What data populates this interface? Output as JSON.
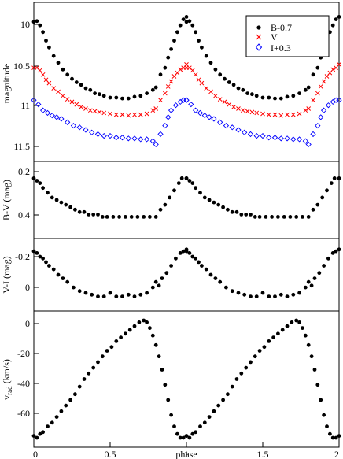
{
  "chart_data": [
    {
      "type": "scatter",
      "ylabel": "magnitude",
      "y_inverted": true,
      "xlim": [
        0,
        2
      ],
      "ylim": [
        9.85,
        11.72
      ],
      "yticks": [
        "10",
        "10.5",
        "11",
        "11.5"
      ],
      "ytick_values": [
        10,
        10.5,
        11,
        11.5
      ],
      "legend_position": "top-right",
      "series": [
        {
          "name": "B-0.7",
          "marker": "circle",
          "color": "#000000",
          "x": [
            0.0,
            0.02,
            0.04,
            0.06,
            0.08,
            0.1,
            0.13,
            0.16,
            0.19,
            0.22,
            0.25,
            0.28,
            0.31,
            0.34,
            0.37,
            0.4,
            0.43,
            0.46,
            0.5,
            0.54,
            0.58,
            0.62,
            0.66,
            0.7,
            0.74,
            0.78,
            0.8,
            0.83,
            0.86,
            0.88,
            0.9,
            0.92,
            0.94,
            0.96,
            0.98,
            1.0
          ],
          "y": [
            10.08,
            10.07,
            10.12,
            10.2,
            10.3,
            10.38,
            10.48,
            10.56,
            10.64,
            10.7,
            10.75,
            10.79,
            10.82,
            10.86,
            10.88,
            10.92,
            10.93,
            10.95,
            10.97,
            10.97,
            10.98,
            10.98,
            10.96,
            10.95,
            10.92,
            10.88,
            10.85,
            10.7,
            10.62,
            10.5,
            10.4,
            10.3,
            10.2,
            10.12,
            10.05,
            10.02
          ]
        },
        {
          "name": "V",
          "marker": "x",
          "color": "#ff0000",
          "x": [
            0.0,
            0.02,
            0.04,
            0.06,
            0.08,
            0.1,
            0.13,
            0.16,
            0.19,
            0.22,
            0.25,
            0.28,
            0.31,
            0.34,
            0.37,
            0.4,
            0.43,
            0.46,
            0.5,
            0.54,
            0.58,
            0.62,
            0.66,
            0.7,
            0.74,
            0.78,
            0.8,
            0.83,
            0.86,
            0.88,
            0.9,
            0.92,
            0.94,
            0.96,
            0.98,
            1.0
          ],
          "y": [
            10.62,
            10.62,
            10.65,
            10.7,
            10.76,
            10.8,
            10.86,
            10.9,
            10.95,
            10.99,
            11.02,
            11.05,
            11.08,
            11.1,
            11.12,
            11.13,
            11.14,
            11.15,
            11.16,
            11.17,
            11.17,
            11.18,
            11.17,
            11.17,
            11.16,
            11.12,
            11.1,
            11.0,
            10.92,
            10.84,
            10.78,
            10.72,
            10.68,
            10.64,
            10.62,
            10.58
          ]
        },
        {
          "name": "I+0.3",
          "marker": "diamond",
          "color": "#0000ff",
          "x": [
            0.0,
            0.03,
            0.06,
            0.09,
            0.12,
            0.15,
            0.18,
            0.22,
            0.26,
            0.3,
            0.34,
            0.38,
            0.42,
            0.46,
            0.5,
            0.54,
            0.58,
            0.62,
            0.66,
            0.7,
            0.74,
            0.78,
            0.8,
            0.83,
            0.86,
            0.88,
            0.9,
            0.93,
            0.96,
            0.98,
            1.0
          ],
          "y": [
            11.0,
            11.05,
            11.12,
            11.15,
            11.18,
            11.2,
            11.22,
            11.26,
            11.3,
            11.32,
            11.35,
            11.38,
            11.4,
            11.42,
            11.42,
            11.44,
            11.44,
            11.45,
            11.45,
            11.46,
            11.46,
            11.48,
            11.52,
            11.4,
            11.3,
            11.2,
            11.12,
            11.06,
            11.02,
            11.0,
            11.0
          ]
        }
      ]
    },
    {
      "type": "scatter",
      "ylabel": "B-V (mag)",
      "y_inverted": true,
      "xlim": [
        0,
        2
      ],
      "ylim": [
        0.18,
        0.5
      ],
      "yticks": [
        "0.2",
        "0.4"
      ],
      "ytick_values": [
        0.2,
        0.4
      ],
      "series": [
        {
          "name": "",
          "marker": "circle",
          "color": "#000000",
          "x": [
            0.0,
            0.02,
            0.04,
            0.06,
            0.09,
            0.12,
            0.15,
            0.18,
            0.21,
            0.24,
            0.27,
            0.3,
            0.33,
            0.36,
            0.39,
            0.42,
            0.45,
            0.48,
            0.52,
            0.56,
            0.6,
            0.64,
            0.68,
            0.72,
            0.76,
            0.8,
            0.83,
            0.86,
            0.89,
            0.92,
            0.95,
            0.97,
            1.0
          ],
          "y": [
            0.25,
            0.26,
            0.27,
            0.29,
            0.31,
            0.33,
            0.34,
            0.35,
            0.36,
            0.37,
            0.38,
            0.39,
            0.39,
            0.4,
            0.4,
            0.4,
            0.41,
            0.41,
            0.41,
            0.41,
            0.41,
            0.41,
            0.41,
            0.41,
            0.41,
            0.41,
            0.38,
            0.36,
            0.33,
            0.3,
            0.27,
            0.25,
            0.25
          ]
        }
      ]
    },
    {
      "type": "scatter",
      "ylabel": "V-I (mag)",
      "y_inverted": true,
      "xlim": [
        0,
        2
      ],
      "ylim": [
        -0.32,
        0.08
      ],
      "yticks": [
        "-0.2",
        "0"
      ],
      "ytick_values": [
        -0.2,
        0
      ],
      "series": [
        {
          "name": "",
          "marker": "circle",
          "color": "#000000",
          "x": [
            0.0,
            0.02,
            0.04,
            0.06,
            0.08,
            0.1,
            0.13,
            0.16,
            0.19,
            0.22,
            0.26,
            0.3,
            0.34,
            0.38,
            0.42,
            0.46,
            0.5,
            0.54,
            0.58,
            0.62,
            0.66,
            0.7,
            0.74,
            0.78,
            0.8,
            0.82,
            0.84,
            0.87,
            0.9,
            0.93,
            0.96,
            0.98,
            1.0
          ],
          "y": [
            -0.25,
            -0.24,
            -0.22,
            -0.21,
            -0.19,
            -0.17,
            -0.15,
            -0.12,
            -0.1,
            -0.08,
            -0.05,
            -0.03,
            -0.02,
            -0.01,
            0.0,
            0.0,
            -0.02,
            0.0,
            0.0,
            -0.01,
            0.0,
            -0.01,
            -0.02,
            -0.05,
            -0.08,
            -0.06,
            -0.1,
            -0.13,
            -0.17,
            -0.21,
            -0.24,
            -0.25,
            -0.26
          ]
        }
      ]
    },
    {
      "type": "scatter",
      "xlabel": "phase",
      "ylabel": "v_rad (km/s)",
      "xlim": [
        0,
        2
      ],
      "ylim": [
        -68,
        4
      ],
      "xticks": [
        "0",
        "0.5",
        "1",
        "1.5",
        "2"
      ],
      "xtick_values": [
        0,
        0.5,
        1,
        1.5,
        2
      ],
      "yticks": [
        "0",
        "-20",
        "-40",
        "-60"
      ],
      "ytick_values": [
        0,
        -20,
        -40,
        -60
      ],
      "series": [
        {
          "name": "",
          "marker": "circle",
          "color": "#000000",
          "x": [
            0.0,
            0.02,
            0.04,
            0.06,
            0.09,
            0.12,
            0.15,
            0.18,
            0.21,
            0.24,
            0.27,
            0.3,
            0.33,
            0.36,
            0.39,
            0.42,
            0.45,
            0.48,
            0.51,
            0.54,
            0.57,
            0.6,
            0.63,
            0.66,
            0.69,
            0.72,
            0.74,
            0.76,
            0.78,
            0.8,
            0.82,
            0.84,
            0.86,
            0.88,
            0.9,
            0.92,
            0.94,
            0.96,
            0.98,
            1.0
          ],
          "y": [
            -62,
            -63,
            -61,
            -60,
            -57,
            -55,
            -52,
            -49,
            -46,
            -43,
            -40,
            -36,
            -32,
            -29,
            -26,
            -23,
            -20,
            -17,
            -15,
            -12,
            -10,
            -8,
            -6,
            -4,
            -2,
            -1,
            -2,
            -5,
            -9,
            -14,
            -20,
            -27,
            -35,
            -43,
            -51,
            -57,
            -61,
            -63,
            -63,
            -62
          ]
        }
      ]
    }
  ]
}
